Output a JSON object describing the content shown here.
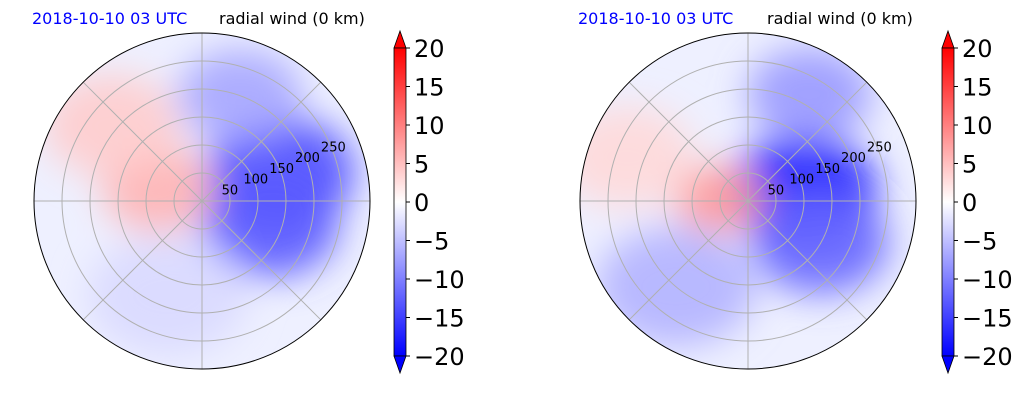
{
  "chart_data": [
    {
      "type": "heatmap",
      "projection": "polar",
      "title_left": "2018-10-10 03 UTC",
      "title_right": "radial wind (0 km)",
      "radial_ticks": [
        "50",
        "100",
        "150",
        "200",
        "250"
      ],
      "radial_tick_values": [
        50,
        100,
        150,
        200,
        250
      ],
      "r_max": 300,
      "angular_grid_deg": [
        0,
        45,
        90,
        135,
        180,
        225,
        270,
        315
      ],
      "colorbar": {
        "ticks": [
          "20",
          "15",
          "10",
          "5",
          "0",
          "−5",
          "−10",
          "−15",
          "−20"
        ],
        "tick_values": [
          20,
          15,
          10,
          5,
          0,
          -5,
          -10,
          -15,
          -20
        ],
        "vmin": -20,
        "vmax": 20,
        "extend": "both",
        "cmap": "bwr",
        "color_min": "#0000ff",
        "color_mid": "#ffffff",
        "color_max": "#ff0000"
      },
      "field_features": [
        {
          "angle_deg": 20,
          "r": 150,
          "value": -14,
          "spread": 0.9
        },
        {
          "angle_deg": -20,
          "r": 130,
          "value": -13,
          "spread": 0.8
        },
        {
          "angle_deg": 70,
          "r": 200,
          "value": -7,
          "spread": 0.7
        },
        {
          "angle_deg": 165,
          "r": 80,
          "value": 6,
          "spread": 0.6
        },
        {
          "angle_deg": 140,
          "r": 210,
          "value": 4,
          "spread": 0.8
        },
        {
          "angle_deg": 250,
          "r": 180,
          "value": -3,
          "spread": 1.0
        }
      ]
    },
    {
      "type": "heatmap",
      "projection": "polar",
      "title_left": "2018-10-10 03 UTC",
      "title_right": "radial wind (0 km)",
      "radial_ticks": [
        "50",
        "100",
        "150",
        "200",
        "250"
      ],
      "radial_tick_values": [
        50,
        100,
        150,
        200,
        250
      ],
      "r_max": 300,
      "angular_grid_deg": [
        0,
        45,
        90,
        135,
        180,
        225,
        270,
        315
      ],
      "colorbar": {
        "ticks": [
          "20",
          "15",
          "10",
          "5",
          "0",
          "−5",
          "−10",
          "−15",
          "−20"
        ],
        "tick_values": [
          20,
          15,
          10,
          5,
          0,
          -5,
          -10,
          -15,
          -20
        ],
        "vmin": -20,
        "vmax": 20,
        "extend": "both",
        "cmap": "bwr",
        "color_min": "#0000ff",
        "color_mid": "#ffffff",
        "color_max": "#ff0000"
      },
      "field_features": [
        {
          "angle_deg": 10,
          "r": 100,
          "value": -18,
          "spread": 0.9
        },
        {
          "angle_deg": -30,
          "r": 150,
          "value": -12,
          "spread": 0.8
        },
        {
          "angle_deg": 60,
          "r": 220,
          "value": -8,
          "spread": 0.7
        },
        {
          "angle_deg": 175,
          "r": 50,
          "value": 8,
          "spread": 0.4
        },
        {
          "angle_deg": 160,
          "r": 230,
          "value": 3,
          "spread": 0.8
        },
        {
          "angle_deg": 230,
          "r": 200,
          "value": -6,
          "spread": 1.0
        }
      ]
    }
  ]
}
